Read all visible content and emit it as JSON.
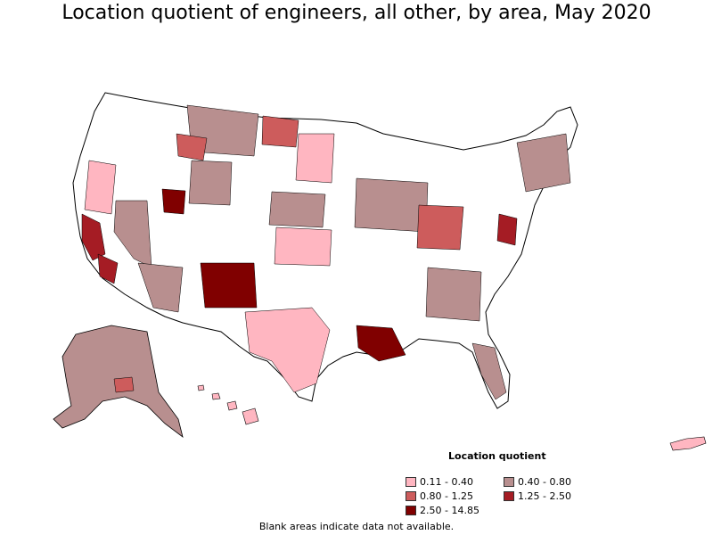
{
  "title": "Location quotient of engineers, all other, by area, May 2020",
  "legend": {
    "title": "Location quotient",
    "items": [
      {
        "label": "0.11 - 0.40",
        "color": "#ffb6c1"
      },
      {
        "label": "0.40 - 0.80",
        "color": "#b88f8f"
      },
      {
        "label": "0.80 - 1.25",
        "color": "#cd5c5c"
      },
      {
        "label": "1.25 - 2.50",
        "color": "#a51c24"
      },
      {
        "label": "2.50 - 14.85",
        "color": "#800000"
      }
    ]
  },
  "footnote": "Blank areas indicate data not available."
}
